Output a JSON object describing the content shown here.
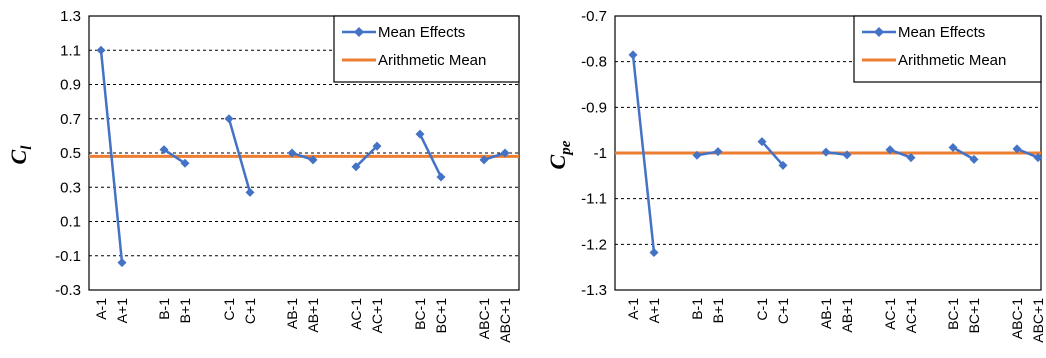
{
  "chart_data": [
    {
      "type": "line",
      "ylabel": "C",
      "ylabel_sub": "l",
      "categories": [
        "A-1",
        "A+1",
        "B-1",
        "B+1",
        "C-1",
        "C+1",
        "AB-1",
        "AB+1",
        "AC-1",
        "AC+1",
        "BC-1",
        "BC+1",
        "ABC-1",
        "ABC+1"
      ],
      "ylim": [
        -0.3,
        1.3
      ],
      "yticks": [
        "1.3",
        "1.1",
        "0.9",
        "0.7",
        "0.5",
        "0.3",
        "0.1",
        "-0.1",
        "-0.3"
      ],
      "series": [
        {
          "name": "Mean Effects",
          "color": "#4472C4",
          "marker": "diamond",
          "pairs": [
            [
              1.1,
              -0.14
            ],
            [
              0.52,
              0.44
            ],
            [
              0.7,
              0.27
            ],
            [
              0.5,
              0.46
            ],
            [
              0.42,
              0.54
            ],
            [
              0.61,
              0.36
            ],
            [
              0.46,
              0.5
            ]
          ]
        },
        {
          "name": "Arithmetic Mean",
          "color": "#ED7D31",
          "value": 0.48
        }
      ],
      "grid": true,
      "legend": "top-right"
    },
    {
      "type": "line",
      "ylabel": "C",
      "ylabel_sub": "pe",
      "categories": [
        "A-1",
        "A+1",
        "B-1",
        "B+1",
        "C-1",
        "C+1",
        "AB-1",
        "AB+1",
        "AC-1",
        "AC+1",
        "BC-1",
        "BC+1",
        "ABC-1",
        "ABC+1"
      ],
      "ylim": [
        -1.3,
        -0.7
      ],
      "yticks": [
        "-0.7",
        "-0.8",
        "-0.9",
        "-1",
        "-1.1",
        "-1.2",
        "-1.3"
      ],
      "series": [
        {
          "name": "Mean Effects",
          "color": "#4472C4",
          "marker": "diamond",
          "pairs": [
            [
              -0.785,
              -1.218
            ],
            [
              -1.005,
              -0.997
            ],
            [
              -0.975,
              -1.027
            ],
            [
              -0.998,
              -1.004
            ],
            [
              -0.993,
              -1.01
            ],
            [
              -0.988,
              -1.014
            ],
            [
              -0.991,
              -1.01
            ]
          ]
        },
        {
          "name": "Arithmetic Mean",
          "color": "#ED7D31",
          "value": -1.0
        }
      ],
      "grid": true,
      "legend": "top-right"
    }
  ]
}
